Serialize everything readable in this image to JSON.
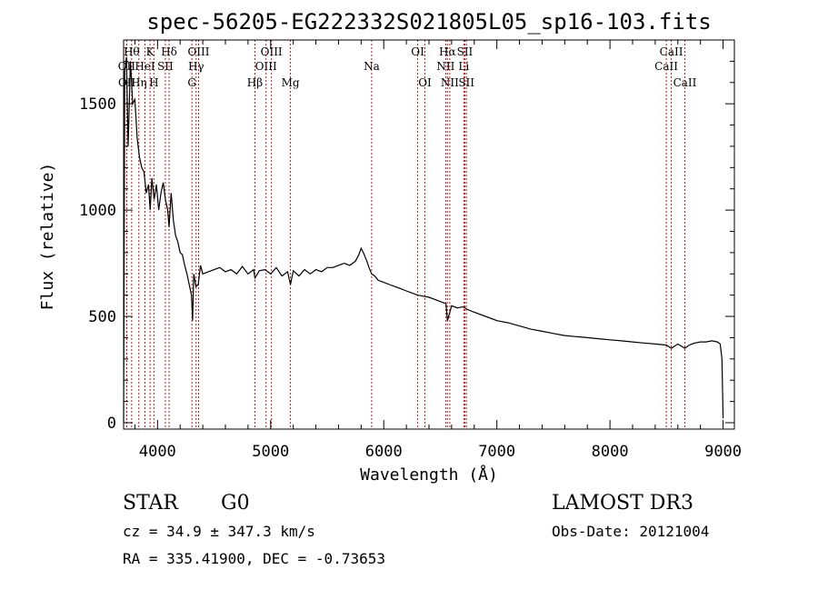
{
  "chart_data": {
    "type": "line",
    "title": "spec-56205-EG222332S021805L05_sp16-103.fits",
    "xlabel": "Wavelength (Å)",
    "ylabel": "Flux (relative)",
    "xlim": [
      3700,
      9100
    ],
    "ylim": [
      -30,
      1800
    ],
    "xticks": [
      4000,
      5000,
      6000,
      7000,
      8000,
      9000
    ],
    "xtick_labels": [
      "4000",
      "5000",
      "6000",
      "7000",
      "8000",
      "9000"
    ],
    "yticks": [
      0,
      500,
      1000,
      1500
    ],
    "ytick_labels": [
      "0",
      "500",
      "1000",
      "1500"
    ],
    "grid": false,
    "legend": "none",
    "line_color": "#000000",
    "marker_color": "#b22222",
    "series": [
      {
        "x": [
          3700,
          3710,
          3725,
          3740,
          3760,
          3780,
          3800,
          3820,
          3840,
          3860,
          3880,
          3900,
          3920,
          3935,
          3950,
          3970,
          3990,
          4010,
          4030,
          4050,
          4070,
          4090,
          4102,
          4120,
          4140,
          4160,
          4180,
          4200,
          4220,
          4240,
          4260,
          4280,
          4300,
          4310,
          4320,
          4340,
          4360,
          4380,
          4400,
          4450,
          4500,
          4550,
          4600,
          4650,
          4700,
          4750,
          4800,
          4850,
          4861,
          4900,
          4950,
          5000,
          5050,
          5100,
          5150,
          5175,
          5200,
          5250,
          5300,
          5350,
          5400,
          5450,
          5500,
          5550,
          5600,
          5650,
          5700,
          5750,
          5780,
          5800,
          5820,
          5850,
          5870,
          5893,
          5920,
          5950,
          6000,
          6050,
          6100,
          6150,
          6200,
          6250,
          6300,
          6350,
          6400,
          6450,
          6500,
          6550,
          6563,
          6600,
          6650,
          6700,
          6750,
          6800,
          6900,
          7000,
          7100,
          7200,
          7300,
          7400,
          7500,
          7600,
          7700,
          7800,
          7900,
          8000,
          8100,
          8200,
          8300,
          8400,
          8500,
          8542,
          8600,
          8662,
          8700,
          8750,
          8800,
          8850,
          8900,
          8950,
          8975,
          8990,
          9000
        ],
        "y": [
          0,
          1650,
          1720,
          1300,
          1700,
          1500,
          1520,
          1340,
          1250,
          1200,
          1180,
          1080,
          1120,
          1000,
          1150,
          1050,
          1120,
          1000,
          1080,
          1130,
          1050,
          1000,
          920,
          1080,
          950,
          880,
          850,
          800,
          790,
          740,
          700,
          650,
          600,
          480,
          700,
          640,
          650,
          740,
          700,
          710,
          720,
          730,
          710,
          720,
          700,
          735,
          700,
          720,
          680,
          715,
          720,
          700,
          730,
          690,
          710,
          650,
          715,
          690,
          720,
          700,
          720,
          710,
          730,
          730,
          740,
          750,
          740,
          760,
          790,
          820,
          800,
          760,
          730,
          700,
          690,
          670,
          660,
          650,
          640,
          630,
          620,
          610,
          600,
          595,
          590,
          580,
          570,
          560,
          480,
          550,
          540,
          545,
          530,
          520,
          500,
          480,
          470,
          455,
          440,
          430,
          420,
          410,
          405,
          400,
          395,
          390,
          385,
          380,
          375,
          370,
          365,
          350,
          370,
          350,
          365,
          375,
          380,
          380,
          385,
          380,
          370,
          300,
          20
        ]
      }
    ],
    "lines": [
      {
        "label": "OII",
        "wavelength": 3727,
        "row": 2
      },
      {
        "label": "OII",
        "wavelength": 3729,
        "row": 3
      },
      {
        "label": "Hθ",
        "wavelength": 3771,
        "row": 1
      },
      {
        "label": "Hη",
        "wavelength": 3835,
        "row": 3
      },
      {
        "label": "HeI",
        "wavelength": 3889,
        "row": 2
      },
      {
        "label": "K",
        "wavelength": 3934,
        "row": 1
      },
      {
        "label": "H",
        "wavelength": 3968,
        "row": 3
      },
      {
        "label": "SII",
        "wavelength": 4069,
        "row": 2
      },
      {
        "label": "Hδ",
        "wavelength": 4102,
        "row": 1
      },
      {
        "label": "G",
        "wavelength": 4304,
        "row": 3
      },
      {
        "label": "Hγ",
        "wavelength": 4341,
        "row": 2
      },
      {
        "label": "OIII",
        "wavelength": 4363,
        "row": 1
      },
      {
        "label": "Hβ",
        "wavelength": 4861,
        "row": 3
      },
      {
        "label": "OIII",
        "wavelength": 4959,
        "row": 2
      },
      {
        "label": "OIII",
        "wavelength": 5007,
        "row": 1
      },
      {
        "label": "Mg",
        "wavelength": 5175,
        "row": 3
      },
      {
        "label": "Na",
        "wavelength": 5893,
        "row": 2
      },
      {
        "label": "OI",
        "wavelength": 6300,
        "row": 1
      },
      {
        "label": "OI",
        "wavelength": 6364,
        "row": 3
      },
      {
        "label": "NII",
        "wavelength": 6548,
        "row": 2
      },
      {
        "label": "Hα",
        "wavelength": 6563,
        "row": 1
      },
      {
        "label": "NII",
        "wavelength": 6584,
        "row": 3
      },
      {
        "label": "SII",
        "wavelength": 6717,
        "row": 1
      },
      {
        "label": "Li",
        "wavelength": 6708,
        "row": 2
      },
      {
        "label": "SII",
        "wavelength": 6731,
        "row": 3
      },
      {
        "label": "CaII",
        "wavelength": 8498,
        "row": 2
      },
      {
        "label": "CaII",
        "wavelength": 8542,
        "row": 1
      },
      {
        "label": "CaII",
        "wavelength": 8662,
        "row": 3
      }
    ]
  },
  "info": {
    "class": "STAR",
    "subclass": "G0",
    "survey": "LAMOST DR3",
    "cz": "cz = 34.9 ± 347.3 km/s",
    "obs_date": "Obs-Date: 20121004",
    "coords": "RA = 335.41900, DEC =  -0.73653"
  }
}
